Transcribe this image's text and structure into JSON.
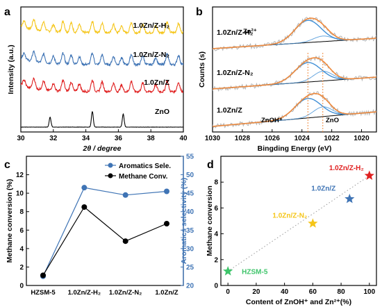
{
  "chart_data": [
    {
      "panel": "a",
      "type": "line",
      "xlabel": "2θ / degree",
      "ylabel": "Intensity (a.u.)",
      "xlim": [
        30,
        40
      ],
      "xticks": [
        30,
        32,
        34,
        36,
        38,
        40
      ],
      "yticks_shown": false,
      "series": [
        {
          "name": "1.0Zn/Z-H₂",
          "color": "#f5c518",
          "peaks": [
            30.2,
            30.8,
            31.4,
            32.0,
            32.6,
            33.1,
            33.6,
            34.4,
            35.0,
            35.7,
            36.2,
            36.8,
            37.5,
            38.3,
            39.0,
            39.7
          ]
        },
        {
          "name": "1.0Zn/Z-N₂",
          "color": "#3f74b5",
          "peaks": [
            30.2,
            30.8,
            31.4,
            32.0,
            32.6,
            33.1,
            33.6,
            34.4,
            35.0,
            35.7,
            36.2,
            36.8,
            37.5,
            38.3,
            39.0,
            39.7
          ]
        },
        {
          "name": "1.0Zn/Z",
          "color": "#e02020",
          "peaks": [
            30.2,
            30.8,
            31.4,
            32.0,
            32.6,
            33.1,
            33.6,
            34.4,
            35.0,
            35.7,
            36.2,
            36.8,
            37.5,
            38.3,
            39.0,
            39.7
          ]
        },
        {
          "name": "ZnO",
          "color": "#000000",
          "peaks": [
            31.8,
            34.4,
            36.3
          ]
        }
      ]
    },
    {
      "panel": "b",
      "type": "line",
      "xlabel": "Bingding Energy (eV)",
      "ylabel": "Counts (s)",
      "xlim": [
        1030,
        1019
      ],
      "xticks": [
        1030,
        1028,
        1026,
        1024,
        1022,
        1020
      ],
      "samples": [
        "1.0Zn/Z-H₂",
        "1.0Zn/Z-N₂",
        "1.0Zn/Z"
      ],
      "component_labels": [
        "Zn²⁺",
        "ZnOH⁺",
        "ZnO"
      ],
      "component_positions_eV": [
        1023.6,
        1022.6
      ],
      "colors": {
        "raw": "#b5b5b5",
        "envelope": "#f08a3c",
        "component": "#3f8fd6",
        "background": "#000000"
      }
    },
    {
      "panel": "c",
      "type": "line",
      "categories": [
        "HZSM-5",
        "1.0Zn/Z-H₂",
        "1.0Zn/Z-N₂",
        "1.0Zn/Z"
      ],
      "series": [
        {
          "name": "Aromatics Sele.",
          "axis": "right",
          "color": "#3f74b5",
          "values": [
            22.5,
            46.5,
            44.5,
            45.5
          ]
        },
        {
          "name": "Methane Conv.",
          "axis": "left",
          "color": "#000000",
          "values": [
            1.1,
            8.5,
            4.8,
            6.7
          ]
        }
      ],
      "ylabel": "Methane conversion (%)",
      "y2label": "Aromatics selectivity (%)",
      "ylim": [
        0,
        14
      ],
      "yticks": [
        0,
        2,
        4,
        6,
        8,
        10,
        12
      ],
      "y2lim": [
        20,
        55
      ],
      "y2ticks": [
        20,
        25,
        30,
        35,
        40,
        45,
        50,
        55
      ],
      "legend": "top-right"
    },
    {
      "panel": "d",
      "type": "scatter",
      "xlabel": "Content of ZnOH⁺ and Zn²⁺(%)",
      "ylabel": "Methane conversion",
      "xlim": [
        -5,
        105
      ],
      "xticks": [
        0,
        20,
        40,
        60,
        80,
        100
      ],
      "ylim": [
        0,
        10
      ],
      "yticks": [
        0,
        2,
        4,
        6,
        8
      ],
      "points": [
        {
          "label": "HZSM-5",
          "x": 0,
          "y": 1.1,
          "color": "#3ec46a"
        },
        {
          "label": "1.0Zn/Z-N₂",
          "x": 60,
          "y": 4.8,
          "color": "#f5c518"
        },
        {
          "label": "1.0Zn/Z",
          "x": 86,
          "y": 6.7,
          "color": "#3f74b5"
        },
        {
          "label": "1.0Zn/Z-H₂",
          "x": 100,
          "y": 8.5,
          "color": "#e02020"
        }
      ],
      "trendline": "dotted"
    }
  ],
  "panel_letters": [
    "a",
    "b",
    "c",
    "d"
  ]
}
